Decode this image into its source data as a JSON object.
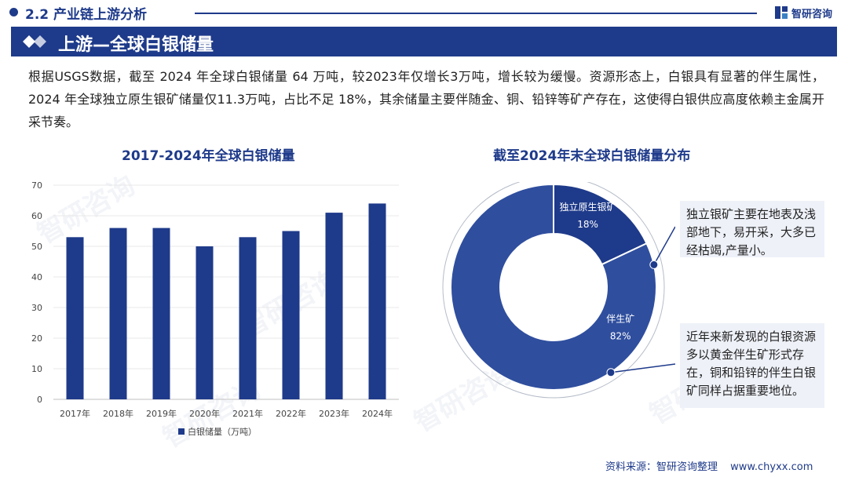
{
  "header": {
    "section_title": "2.2 产业链上游分析",
    "brand": "智研咨询"
  },
  "banner": {
    "title": "上游—全球白银储量"
  },
  "intro": {
    "text": "根据USGS数据，截至 2024 年全球白银储量 64 万吨，较2023年仅增长3万吨，增长较为缓慢。资源形态上，白银具有显著的伴生属性，2024 年全球独立原生银矿储量仅11.3万吨，占比不足 18%，其余储量主要伴随金、铜、铅锌等矿产存在，这使得白银供应高度依赖主金属开采节奏。"
  },
  "chart_data": [
    {
      "type": "bar",
      "title": "2017-2024年全球白银储量",
      "categories": [
        "2017年",
        "2018年",
        "2019年",
        "2020年",
        "2021年",
        "2022年",
        "2023年",
        "2024年"
      ],
      "series": [
        {
          "name": "白银储量（万吨）",
          "values": [
            53,
            56,
            56,
            50,
            53,
            55,
            61,
            64
          ]
        }
      ],
      "ylim": [
        0,
        70
      ],
      "yticks": [
        0,
        10,
        20,
        30,
        40,
        50,
        60,
        70
      ],
      "ytick_labels": [
        "0",
        "10",
        "20",
        "30",
        "40",
        "50",
        "60",
        "70"
      ],
      "legend": "bottom-center",
      "color": "#1e3a8a"
    },
    {
      "type": "pie",
      "title": "截至2024年末全球白银储量分布",
      "donut": true,
      "slices": [
        {
          "label": "独立原生银矿",
          "value": 18,
          "value_label": "18%",
          "color": "#1e3a8a"
        },
        {
          "label": "伴生矿",
          "value": 82,
          "value_label": "82%",
          "color": "#2f4e9e"
        }
      ],
      "annotations": [
        "独立银矿主要在地表及浅部地下，易开采，大多已经枯竭,产量小。",
        "近年来新发现的白银资源多以黄金伴生矿形式存在，铜和铅锌的伴生白银矿同样占据重要地位。"
      ]
    }
  ],
  "watermark": "智研咨询",
  "footer": {
    "source": "资料来源：智研咨询整理",
    "url": "www.chyxx.com"
  }
}
